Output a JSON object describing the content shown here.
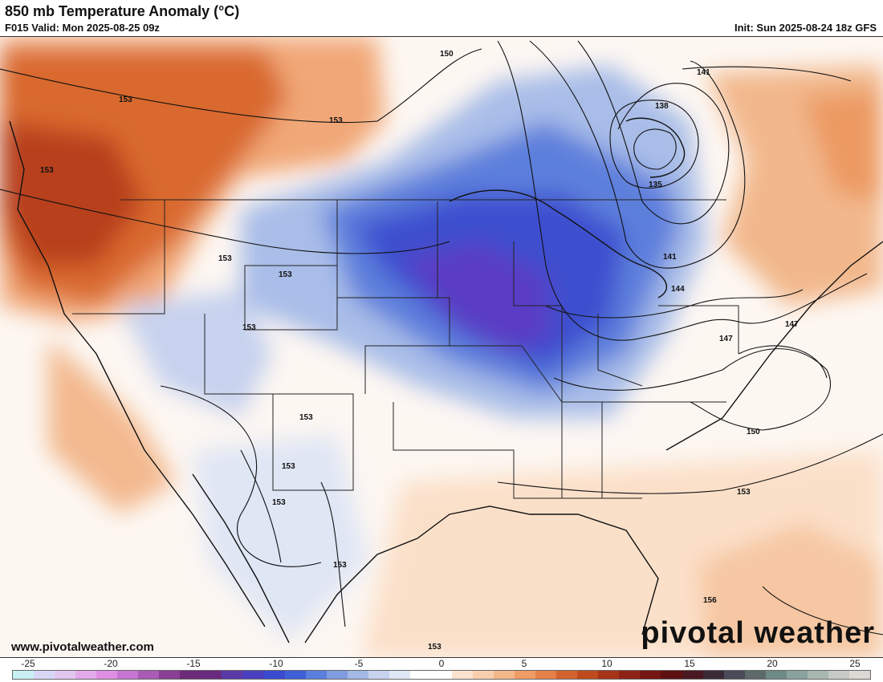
{
  "header": {
    "title": "850 mb Temperature Anomaly (°C)",
    "valid": "F015 Valid: Mon 2025-08-25 09z",
    "init": "Init: Sun 2025-08-24 18z GFS"
  },
  "footer": {
    "website": "www.pivotalweather.com",
    "brand": "pivotal weather"
  },
  "colorbar": {
    "ticks": [
      "-25",
      "-20",
      "-15",
      "-10",
      "-5",
      "0",
      "5",
      "10",
      "15",
      "20",
      "25"
    ],
    "colors": [
      "#c8f0f4",
      "#d7d7f5",
      "#e3c6f0",
      "#e3a9ea",
      "#df8fe3",
      "#c774d2",
      "#a95bb6",
      "#8a3f95",
      "#6d2a78",
      "#6a2a80",
      "#5a3aa8",
      "#4a3fc0",
      "#3b4bd0",
      "#3d5fd8",
      "#5b7fdc",
      "#7f9ce0",
      "#a3b8e6",
      "#c6d2ee",
      "#dfe6f4",
      "#ffffff",
      "#ffffff",
      "#fbe3d0",
      "#f8cfae",
      "#f4b78a",
      "#ef9c66",
      "#e5804a",
      "#d4622e",
      "#c04a1e",
      "#a83418",
      "#8e2214",
      "#761614",
      "#5e1010",
      "#4a1820",
      "#3a2a38",
      "#4a4a58",
      "#5e6a6a",
      "#6f8a86",
      "#8aa29c",
      "#a8b7b0",
      "#c6cac4",
      "#dcd8d4"
    ]
  },
  "contours": {
    "labels": [
      "150",
      "153",
      "153",
      "153",
      "153",
      "153",
      "153",
      "153",
      "153",
      "153",
      "153",
      "153",
      "141",
      "138",
      "135",
      "141",
      "144",
      "147",
      "147",
      "150",
      "153",
      "156",
      "153"
    ]
  }
}
